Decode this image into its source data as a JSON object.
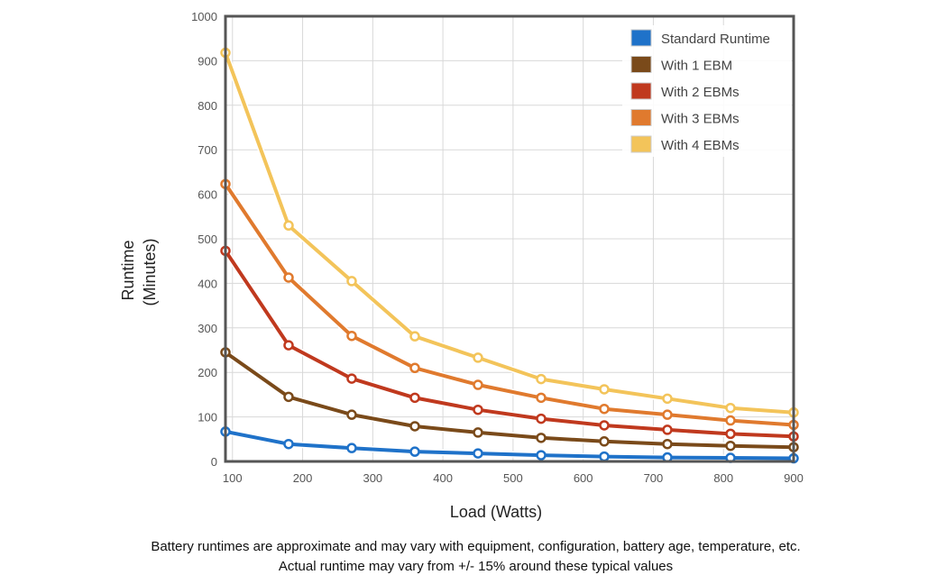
{
  "chart_data": {
    "type": "line",
    "title": "",
    "xlabel": "Load (Watts)",
    "ylabel_lines": [
      "Runtime",
      "(Minutes)"
    ],
    "xlim": [
      90,
      900
    ],
    "ylim": [
      0,
      1000
    ],
    "x_ticks": [
      100,
      200,
      300,
      400,
      500,
      600,
      700,
      800,
      900
    ],
    "y_ticks": [
      0,
      100,
      200,
      300,
      400,
      500,
      600,
      700,
      800,
      900,
      1000
    ],
    "grid": true,
    "legend_position": "top-right",
    "series": [
      {
        "name": "Standard Runtime",
        "color": "#1f72c9",
        "x": [
          90,
          180,
          270,
          360,
          450,
          540,
          630,
          720,
          810,
          900
        ],
        "y": [
          67,
          39,
          30,
          22,
          18,
          14,
          11,
          9,
          8,
          7
        ]
      },
      {
        "name": "With 1 EBM",
        "color": "#7a4a1a",
        "x": [
          90,
          180,
          270,
          360,
          450,
          540,
          630,
          720,
          810,
          900
        ],
        "y": [
          245,
          145,
          105,
          79,
          65,
          53,
          45,
          39,
          35,
          32
        ]
      },
      {
        "name": "With 2 EBMs",
        "color": "#c0391e",
        "x": [
          90,
          180,
          270,
          360,
          450,
          540,
          630,
          720,
          810,
          900
        ],
        "y": [
          473,
          261,
          186,
          143,
          116,
          96,
          81,
          71,
          62,
          56
        ]
      },
      {
        "name": "With 3 EBMs",
        "color": "#e07a2e",
        "x": [
          90,
          180,
          270,
          360,
          450,
          540,
          630,
          720,
          810,
          900
        ],
        "y": [
          623,
          413,
          282,
          210,
          172,
          143,
          118,
          105,
          92,
          82
        ]
      },
      {
        "name": "With 4 EBMs",
        "color": "#f3c45a",
        "x": [
          90,
          180,
          270,
          360,
          450,
          540,
          630,
          720,
          810,
          900
        ],
        "y": [
          918,
          530,
          405,
          281,
          233,
          185,
          162,
          141,
          120,
          110
        ]
      }
    ]
  },
  "footnote": {
    "line1": "Battery runtimes are approximate and may vary with equipment, configuration, battery age, temperature, etc.",
    "line2": "Actual runtime may vary from +/- 15% around these typical values"
  }
}
